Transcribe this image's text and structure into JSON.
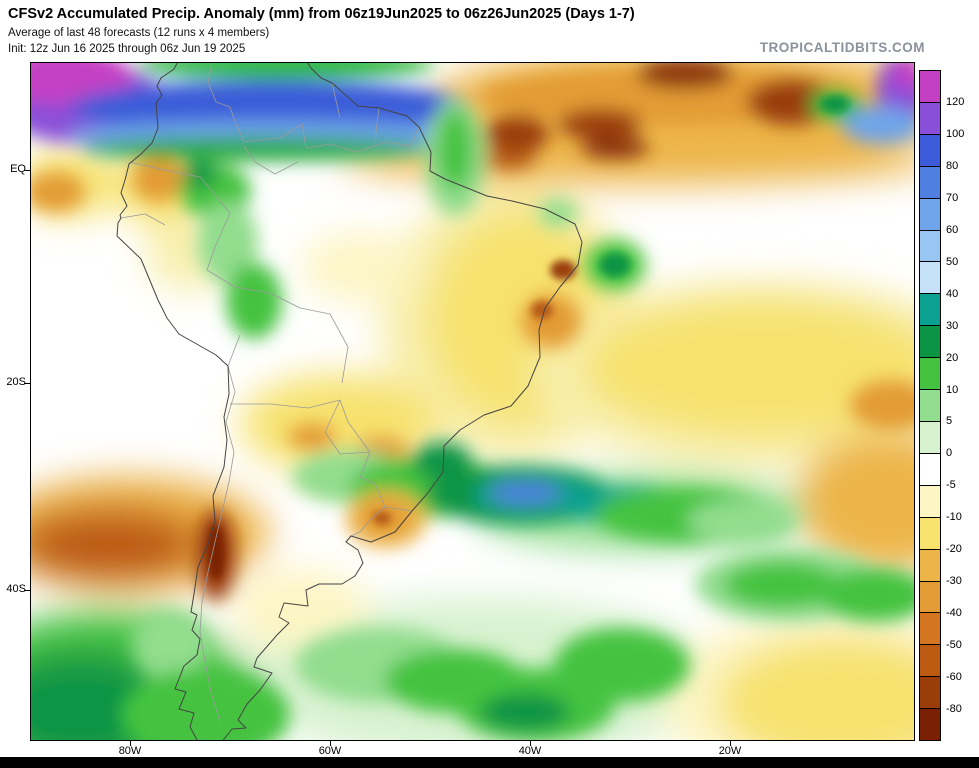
{
  "header": {
    "title": "CFSv2 Accumulated Precip. Anomaly (mm) from 06z19Jun2025 to 06z26Jun2025 (Days 1-7)",
    "subtitle": "Average of last 48 forecasts (12 runs x 4 members)",
    "init_line": "Init: 12z Jun 16 2025 through 06z Jun 19 2025",
    "watermark": "TROPICALTIDBITS.COM"
  },
  "map": {
    "y_axis_labels": [
      "EQ",
      "20S",
      "40S"
    ],
    "x_axis_labels": [
      "80W",
      "60W",
      "40W",
      "20W"
    ]
  },
  "chart_data": {
    "type": "heatmap",
    "title": "CFSv2 Accumulated Precip. Anomaly (mm) from 06z19Jun2025 to 06z26Jun2025 (Days 1-7)",
    "subtitle": "Average of last 48 forecasts (12 runs x 4 members)",
    "init": "Init: 12z Jun 16 2025 through 06z Jun 19 2025",
    "model": "CFSv2",
    "variable": "Accumulated precipitation anomaly",
    "units": "mm",
    "valid_from": "06z19Jun2025",
    "valid_to": "06z26Jun2025",
    "forecast_days": "1-7",
    "region": "South America and adjacent oceans",
    "x_tick_labels": [
      "80W",
      "60W",
      "40W",
      "20W"
    ],
    "y_tick_labels": [
      "EQ",
      "20S",
      "40S"
    ],
    "colorbar": {
      "boundary_labels": [
        "120",
        "100",
        "80",
        "70",
        "60",
        "50",
        "40",
        "30",
        "20",
        "10",
        "5",
        "0",
        "-5",
        "-10",
        "-20",
        "-30",
        "-40",
        "-50",
        "-60",
        "-80"
      ],
      "segment_colors_top_to_bottom": [
        "#c33fc3",
        "#8a4fd8",
        "#3b5bd8",
        "#4f7fe0",
        "#6ea4ea",
        "#97c6f2",
        "#c4e1f8",
        "#0aa190",
        "#0b9444",
        "#45c33f",
        "#92dd8e",
        "#d8f2d0",
        "#ffffff",
        "#fdf5c4",
        "#f7e26e",
        "#edb548",
        "#e39b35",
        "#d3761f",
        "#bc5a12",
        "#9a3d09",
        "#7a2005"
      ]
    },
    "anomaly_features": [
      {
        "region": "Southern Caribbean / N Colombia-Venezuela coast",
        "anomaly": "wet",
        "approx_mm": "+60 to +120"
      },
      {
        "region": "Tropical Atlantic ITCZ north of the equator",
        "anomaly": "dry",
        "approx_mm": "-40 to -80"
      },
      {
        "region": "NW Andes / western Amazon fringe",
        "anomaly": "wet",
        "approx_mm": "+10 to +30"
      },
      {
        "region": "Central Amazon basin",
        "anomaly": "near neutral",
        "approx_mm": "-5 to +5"
      },
      {
        "region": "Eastern Brazil and adjacent Atlantic",
        "anomaly": "dry",
        "approx_mm": "-10 to -40"
      },
      {
        "region": "S Brazil / Uruguay offshore band near 30S",
        "anomaly": "wet",
        "approx_mm": "+20 to +70"
      },
      {
        "region": "Central Chile near 35S and SE Pacific band",
        "anomaly": "dry",
        "approx_mm": "-40 to below -80"
      },
      {
        "region": "SE Pacific near Patagonian coast",
        "anomaly": "wet",
        "approx_mm": "+10 to +40"
      },
      {
        "region": "Southern Ocean / S Atlantic near 45-50S",
        "anomaly": "wet",
        "approx_mm": "+10 to +30"
      },
      {
        "region": "SW Atlantic bottom-right sector",
        "anomaly": "dry",
        "approx_mm": "-10 to -20"
      }
    ]
  }
}
